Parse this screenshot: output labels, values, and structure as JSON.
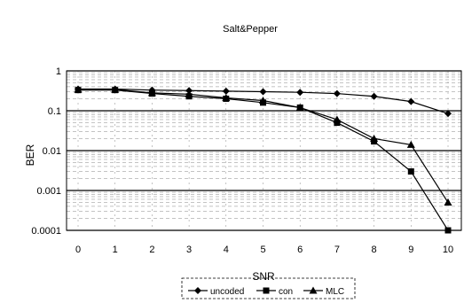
{
  "chart_data": {
    "type": "line",
    "title": "Salt&Pepper",
    "xlabel": "SNR",
    "ylabel": "BER",
    "x": [
      0,
      1,
      2,
      3,
      4,
      5,
      6,
      7,
      8,
      9,
      10
    ],
    "y_scale": "log",
    "ylim": [
      0.0001,
      1
    ],
    "y_ticks": [
      "1",
      "0.1",
      "0.01",
      "0.001",
      "0.0001"
    ],
    "grid": true,
    "legend_position": "bottom",
    "series": [
      {
        "name": "uncoded",
        "marker": "diamond",
        "values": [
          0.35,
          0.35,
          0.33,
          0.32,
          0.31,
          0.3,
          0.29,
          0.27,
          0.23,
          0.17,
          0.085
        ]
      },
      {
        "name": "con",
        "marker": "square",
        "values": [
          0.33,
          0.33,
          0.27,
          0.23,
          0.2,
          0.16,
          0.12,
          0.05,
          0.017,
          0.003,
          0.0001
        ]
      },
      {
        "name": "MLC",
        "marker": "triangle",
        "values": [
          0.34,
          0.34,
          0.28,
          0.26,
          0.21,
          0.18,
          0.12,
          0.06,
          0.02,
          0.014,
          0.0005
        ]
      }
    ]
  }
}
